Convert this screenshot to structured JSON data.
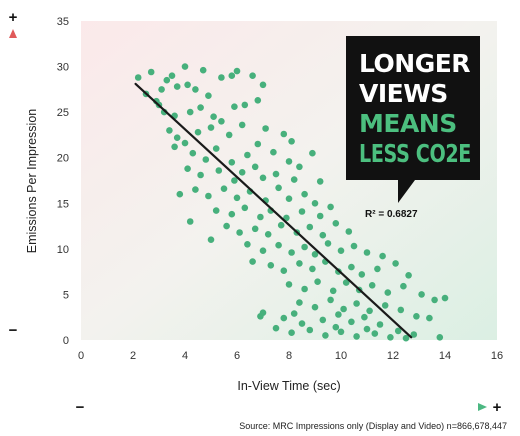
{
  "colors": {
    "dot": "#47b07c",
    "line": "#1a1a1a",
    "red": "#e05a5a",
    "green": "#4cb882",
    "callout_bg": "#111111",
    "callout_white": "#ffffff",
    "callout_green": "#4cbf7f"
  },
  "callout": {
    "line1": "LONGER",
    "line2": "VIEWS",
    "line3": "MEANS",
    "line4": "LESS CO2E"
  },
  "annotation": {
    "r2": "R² = 0.6827"
  },
  "arrows": {
    "y_plus": "+",
    "y_minus": "−",
    "x_plus": "+",
    "x_minus": "−"
  },
  "source": "Source: MRC Impressions only (Display and Video) n=866,678,447",
  "chart_data": {
    "type": "scatter",
    "xlabel": "In-View Time (sec)",
    "ylabel": "Emissions Per Impression",
    "xlim": [
      0,
      16
    ],
    "ylim": [
      0,
      35
    ],
    "xticks": [
      "0",
      "2",
      "4",
      "6",
      "8",
      "10",
      "12",
      "14",
      "16"
    ],
    "yticks": [
      "0",
      "5",
      "10",
      "15",
      "20",
      "25",
      "30",
      "35"
    ],
    "grid": false,
    "trendline": {
      "x": [
        2.1,
        12.7
      ],
      "y": [
        28.1,
        0.3
      ]
    },
    "r_squared": 0.6827,
    "points": [
      [
        2.2,
        28.8
      ],
      [
        2.7,
        29.4
      ],
      [
        2.5,
        27.0
      ],
      [
        2.9,
        26.2
      ],
      [
        3.0,
        25.8
      ],
      [
        3.1,
        27.5
      ],
      [
        3.3,
        28.5
      ],
      [
        3.5,
        29.0
      ],
      [
        3.7,
        27.8
      ],
      [
        4.0,
        30.0
      ],
      [
        4.1,
        28.0
      ],
      [
        4.4,
        27.5
      ],
      [
        4.7,
        29.6
      ],
      [
        5.4,
        28.8
      ],
      [
        5.8,
        29.0
      ],
      [
        6.0,
        29.5
      ],
      [
        6.6,
        29.0
      ],
      [
        7.0,
        28.0
      ],
      [
        3.2,
        25.0
      ],
      [
        3.6,
        24.6
      ],
      [
        4.2,
        25.0
      ],
      [
        4.6,
        25.5
      ],
      [
        4.9,
        26.8
      ],
      [
        5.1,
        24.5
      ],
      [
        5.4,
        24.0
      ],
      [
        5.9,
        25.6
      ],
      [
        6.3,
        25.8
      ],
      [
        6.8,
        26.3
      ],
      [
        3.4,
        23.0
      ],
      [
        3.7,
        22.2
      ],
      [
        4.0,
        21.6
      ],
      [
        4.5,
        22.8
      ],
      [
        5.0,
        23.3
      ],
      [
        5.7,
        22.5
      ],
      [
        6.2,
        23.6
      ],
      [
        7.1,
        23.2
      ],
      [
        7.8,
        22.6
      ],
      [
        8.1,
        21.8
      ],
      [
        3.6,
        21.2
      ],
      [
        4.3,
        20.5
      ],
      [
        4.8,
        19.8
      ],
      [
        5.2,
        21.0
      ],
      [
        5.8,
        19.5
      ],
      [
        6.4,
        20.3
      ],
      [
        6.8,
        21.5
      ],
      [
        7.4,
        20.6
      ],
      [
        8.0,
        19.6
      ],
      [
        4.1,
        18.8
      ],
      [
        4.6,
        18.1
      ],
      [
        5.3,
        18.6
      ],
      [
        5.9,
        17.5
      ],
      [
        6.2,
        18.4
      ],
      [
        6.7,
        19.0
      ],
      [
        7.0,
        17.8
      ],
      [
        7.5,
        18.2
      ],
      [
        8.2,
        17.6
      ],
      [
        8.4,
        19.0
      ],
      [
        4.4,
        16.5
      ],
      [
        4.9,
        15.8
      ],
      [
        5.5,
        16.6
      ],
      [
        6.0,
        15.6
      ],
      [
        6.5,
        16.3
      ],
      [
        7.1,
        15.3
      ],
      [
        7.6,
        16.7
      ],
      [
        8.0,
        15.5
      ],
      [
        8.6,
        16.0
      ],
      [
        9.0,
        15.0
      ],
      [
        5.2,
        14.2
      ],
      [
        5.8,
        13.8
      ],
      [
        6.3,
        14.5
      ],
      [
        6.9,
        13.5
      ],
      [
        7.3,
        14.2
      ],
      [
        7.9,
        13.4
      ],
      [
        8.5,
        14.1
      ],
      [
        9.2,
        13.6
      ],
      [
        9.6,
        14.6
      ],
      [
        5.6,
        12.5
      ],
      [
        6.1,
        11.8
      ],
      [
        6.7,
        12.2
      ],
      [
        7.2,
        11.6
      ],
      [
        7.7,
        12.6
      ],
      [
        8.3,
        11.8
      ],
      [
        8.8,
        12.4
      ],
      [
        9.3,
        11.5
      ],
      [
        9.8,
        12.8
      ],
      [
        10.3,
        11.9
      ],
      [
        6.4,
        10.5
      ],
      [
        7.0,
        9.8
      ],
      [
        7.6,
        10.4
      ],
      [
        8.1,
        9.6
      ],
      [
        8.6,
        10.2
      ],
      [
        9.0,
        9.4
      ],
      [
        9.5,
        10.6
      ],
      [
        10.0,
        9.8
      ],
      [
        10.5,
        10.3
      ],
      [
        11.0,
        9.6
      ],
      [
        11.6,
        9.2
      ],
      [
        7.3,
        8.2
      ],
      [
        7.8,
        7.6
      ],
      [
        8.4,
        8.4
      ],
      [
        8.9,
        7.8
      ],
      [
        9.4,
        8.6
      ],
      [
        9.9,
        7.5
      ],
      [
        10.4,
        8.0
      ],
      [
        10.8,
        7.2
      ],
      [
        11.4,
        7.8
      ],
      [
        12.1,
        8.4
      ],
      [
        12.6,
        7.1
      ],
      [
        8.0,
        6.1
      ],
      [
        8.6,
        5.6
      ],
      [
        9.1,
        6.4
      ],
      [
        9.7,
        5.4
      ],
      [
        10.2,
        6.3
      ],
      [
        10.7,
        5.5
      ],
      [
        11.2,
        6.0
      ],
      [
        11.8,
        5.2
      ],
      [
        12.4,
        5.9
      ],
      [
        13.1,
        5.0
      ],
      [
        13.6,
        4.4
      ],
      [
        8.4,
        4.1
      ],
      [
        9.0,
        3.6
      ],
      [
        9.6,
        4.4
      ],
      [
        10.1,
        3.4
      ],
      [
        10.6,
        4.0
      ],
      [
        11.1,
        3.2
      ],
      [
        11.7,
        3.8
      ],
      [
        12.3,
        3.3
      ],
      [
        12.9,
        2.6
      ],
      [
        13.4,
        2.4
      ],
      [
        14.0,
        4.6
      ],
      [
        7.8,
        2.4
      ],
      [
        8.5,
        1.8
      ],
      [
        9.3,
        2.2
      ],
      [
        9.8,
        1.4
      ],
      [
        10.4,
        2.0
      ],
      [
        11.0,
        1.2
      ],
      [
        11.5,
        1.7
      ],
      [
        12.2,
        1.0
      ],
      [
        12.8,
        0.6
      ],
      [
        7.5,
        1.3
      ],
      [
        8.1,
        0.8
      ],
      [
        8.8,
        1.1
      ],
      [
        9.4,
        0.5
      ],
      [
        10.0,
        0.9
      ],
      [
        10.6,
        0.4
      ],
      [
        11.3,
        0.7
      ],
      [
        11.9,
        0.3
      ],
      [
        12.5,
        0.2
      ],
      [
        13.8,
        0.3
      ],
      [
        7.0,
        3.0
      ],
      [
        6.9,
        2.6
      ],
      [
        8.2,
        2.9
      ],
      [
        9.9,
        2.8
      ],
      [
        10.9,
        2.5
      ],
      [
        5.0,
        11.0
      ],
      [
        4.2,
        13.0
      ],
      [
        3.8,
        16.0
      ],
      [
        6.6,
        8.6
      ],
      [
        9.2,
        17.4
      ],
      [
        8.9,
        20.5
      ]
    ]
  }
}
